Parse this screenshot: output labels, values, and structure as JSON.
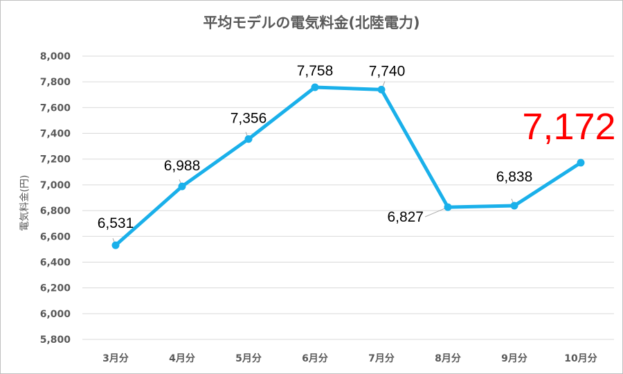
{
  "chart_data": {
    "type": "line",
    "title": "平均モデルの電気料金(北陸電力)",
    "xlabel": "",
    "ylabel": "電気料金(円)",
    "categories": [
      "3月分",
      "4月分",
      "5月分",
      "6月分",
      "7月分",
      "8月分",
      "9月分",
      "10月分"
    ],
    "series": [
      {
        "values": [
          6531,
          6988,
          7356,
          7758,
          7740,
          6827,
          6838,
          7172
        ]
      }
    ],
    "data_labels": [
      "6,531",
      "6,988",
      "7,356",
      "7,758",
      "7,740",
      "6,827",
      "6,838",
      "7,172"
    ],
    "highlighted_label_index": 7,
    "ylim": [
      5800,
      8000
    ],
    "yticks": [
      5800,
      6000,
      6200,
      6400,
      6600,
      6800,
      7000,
      7200,
      7400,
      7600,
      7800,
      8000
    ],
    "ytick_labels": [
      "5,800",
      "6,000",
      "6,200",
      "6,400",
      "6,600",
      "6,800",
      "7,000",
      "7,200",
      "7,400",
      "7,600",
      "7,800",
      "8,000"
    ],
    "grid": true,
    "legend": "none",
    "colors": {
      "line": "#1ab0ea",
      "grid": "#d9d9d9",
      "text": "#595959",
      "highlight": "#ff0000"
    }
  }
}
